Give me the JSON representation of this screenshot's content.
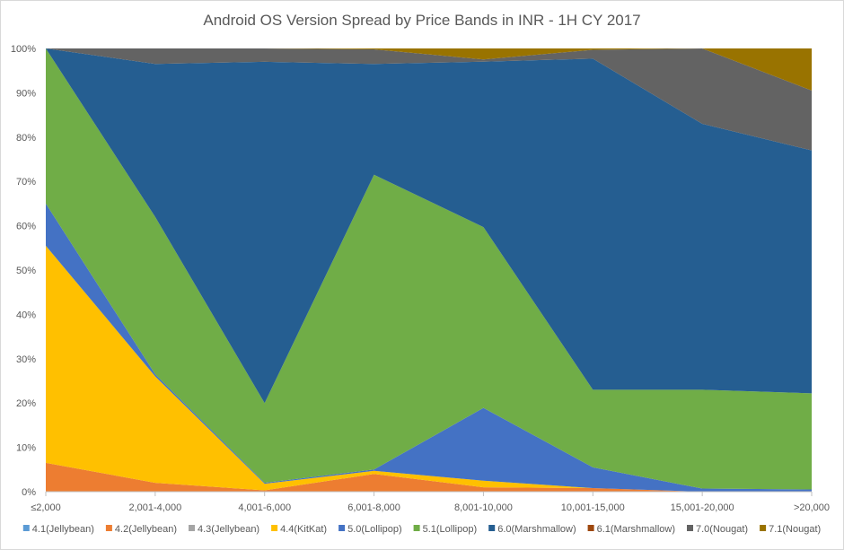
{
  "chart_data": {
    "type": "area",
    "stacked": "percent",
    "title": "Android OS Version Spread by Price Bands in INR - 1H CY 2017",
    "xlabel": "",
    "ylabel": "",
    "categories": [
      "≤2,000",
      "2,001-4,000",
      "4,001-6,000",
      "6,001-8,000",
      "8,001-10,000",
      "10,001-15,000",
      "15,001-20,000",
      ">20,000"
    ],
    "y_ticks": [
      "0%",
      "10%",
      "20%",
      "30%",
      "40%",
      "50%",
      "60%",
      "70%",
      "80%",
      "90%",
      "100%"
    ],
    "ylim": [
      0,
      100
    ],
    "legend_position": "bottom",
    "grid": false,
    "series": [
      {
        "name": "4.1(Jellybean)",
        "color": "#5b9bd5",
        "values": [
          0,
          0,
          0,
          0,
          0,
          0,
          0,
          0
        ]
      },
      {
        "name": "4.2(Jellybean)",
        "color": "#ed7d31",
        "values": [
          6.5,
          2,
          0.3,
          4,
          1,
          0.8,
          0,
          0
        ]
      },
      {
        "name": "4.3(Jellybean)",
        "color": "#a5a5a5",
        "values": [
          0,
          0,
          0,
          0,
          0,
          0,
          0,
          0
        ]
      },
      {
        "name": "4.4(KitKat)",
        "color": "#ffc000",
        "values": [
          49,
          24,
          1.5,
          0.7,
          1.5,
          0,
          0,
          0
        ]
      },
      {
        "name": "5.0(Lollipop)",
        "color": "#4472c4",
        "values": [
          9.5,
          0.5,
          0.2,
          0.3,
          16.5,
          4.7,
          0.7,
          0.5
        ]
      },
      {
        "name": "5.1(Lollipop)",
        "color": "#70ad47",
        "values": [
          35,
          35.5,
          18,
          66.5,
          41,
          17.5,
          22.3,
          21.7
        ]
      },
      {
        "name": "6.0(Marshmallow)",
        "color": "#255e91",
        "values": [
          0,
          34.5,
          77,
          25,
          37.5,
          74.7,
          60,
          54.8
        ]
      },
      {
        "name": "6.1(Marshmallow)",
        "color": "#9e480e",
        "values": [
          0,
          0,
          0,
          0,
          0,
          0,
          0,
          0
        ]
      },
      {
        "name": "7.0(Nougat)",
        "color": "#636363",
        "values": [
          0,
          3.5,
          3,
          3.3,
          0.5,
          2,
          17,
          13.5
        ]
      },
      {
        "name": "7.1(Nougat)",
        "color": "#997300",
        "values": [
          0,
          0,
          0,
          0.2,
          2.5,
          0.3,
          0,
          9.5
        ]
      }
    ]
  }
}
